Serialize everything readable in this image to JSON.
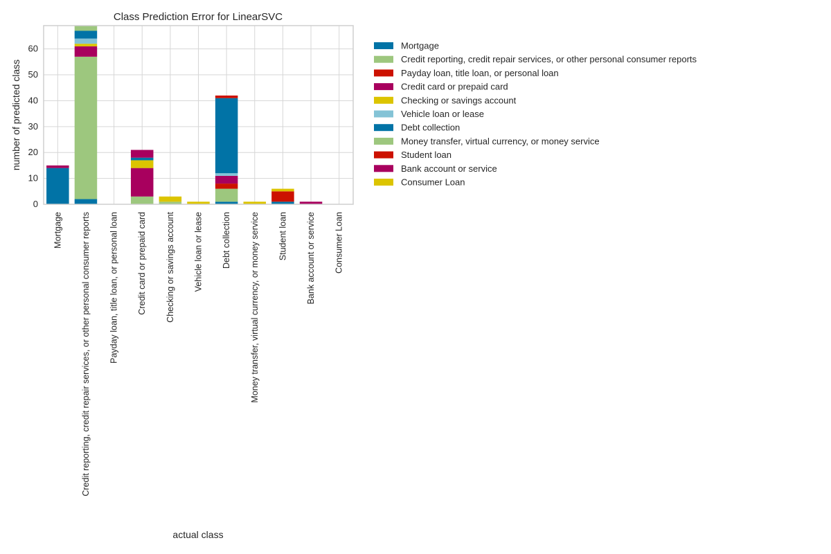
{
  "chart_data": {
    "type": "bar",
    "stacked": true,
    "title": "Class Prediction Error for LinearSVC",
    "xlabel": "actual class",
    "ylabel": "number of predicted class",
    "ylim": [
      0,
      69
    ],
    "yticks": [
      0,
      10,
      20,
      30,
      40,
      50,
      60
    ],
    "grid": true,
    "legend_position": "right, outside plot",
    "categories": [
      "Mortgage",
      "Credit reporting, credit repair services, or other personal consumer reports",
      "Payday loan, title loan, or personal loan",
      "Credit card or prepaid card",
      "Checking or savings account",
      "Vehicle loan or lease",
      "Debt collection",
      "Money transfer, virtual currency, or money service",
      "Student loan",
      "Bank account or service",
      "Consumer Loan"
    ],
    "series": [
      {
        "name": "Mortgage",
        "color": "#0173a6",
        "values": [
          14,
          2,
          0,
          0,
          0,
          0,
          1,
          0,
          1,
          0,
          0
        ]
      },
      {
        "name": "Credit reporting, credit repair services, or other personal consumer reports",
        "color": "#9dc77e",
        "values": [
          0,
          55,
          0,
          3,
          1,
          0,
          5,
          0,
          0,
          0,
          0
        ]
      },
      {
        "name": "Payday loan, title loan, or personal loan",
        "color": "#cc1100",
        "values": [
          0,
          0,
          0,
          0,
          0,
          0,
          2,
          0,
          0,
          0,
          0
        ]
      },
      {
        "name": "Credit card or prepaid card",
        "color": "#a8005e",
        "values": [
          1,
          4,
          0,
          11,
          0,
          0,
          3,
          0,
          0,
          0,
          0
        ]
      },
      {
        "name": "Checking or savings account",
        "color": "#dcc400",
        "values": [
          0,
          1,
          0,
          3,
          2,
          1,
          0,
          1,
          0,
          0,
          0
        ]
      },
      {
        "name": "Vehicle loan or lease",
        "color": "#84c3d6",
        "values": [
          0,
          2,
          0,
          0,
          0,
          0,
          1,
          0,
          0,
          0,
          0
        ]
      },
      {
        "name": "Debt collection",
        "color": "#0173a6",
        "values": [
          0,
          3,
          0,
          1,
          0,
          0,
          29,
          0,
          0,
          0,
          0
        ]
      },
      {
        "name": "Money transfer, virtual currency, or money service",
        "color": "#9dc77e",
        "values": [
          0,
          2,
          0,
          0,
          0,
          0,
          0,
          0,
          0,
          0,
          0
        ]
      },
      {
        "name": "Student loan",
        "color": "#cc1100",
        "values": [
          0,
          0,
          0,
          0,
          0,
          0,
          1,
          0,
          4,
          0,
          0
        ]
      },
      {
        "name": "Bank account or service",
        "color": "#a8005e",
        "values": [
          0,
          0,
          0,
          3,
          0,
          0,
          0,
          0,
          0,
          1,
          0
        ]
      },
      {
        "name": "Consumer Loan",
        "color": "#dcc400",
        "values": [
          0,
          0,
          0,
          0,
          0,
          0,
          0,
          0,
          1,
          0,
          0
        ]
      }
    ]
  },
  "colors": {
    "axes_border": "#cfcfcf",
    "grid": "#d6d6d6",
    "text": "#262626",
    "background": "#ffffff"
  }
}
